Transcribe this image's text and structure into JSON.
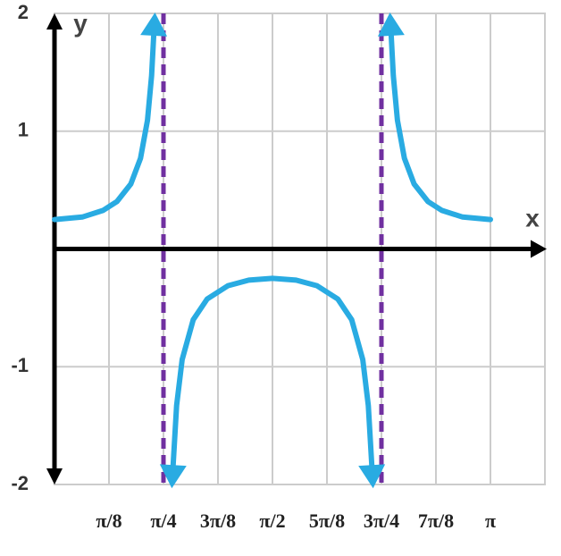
{
  "chart_data": {
    "type": "line",
    "xlabel": "x",
    "ylabel": "y",
    "x": [
      0,
      0.2,
      0.35,
      0.45,
      0.55,
      0.62,
      0.67,
      0.7,
      0.72,
      0.7854,
      0.85,
      0.88,
      0.92,
      1.0,
      1.1,
      1.25,
      1.4,
      1.5708,
      1.7416,
      1.8916,
      2.0416,
      2.1416,
      2.2216,
      2.2616,
      2.2916,
      2.3562,
      2.4216,
      2.4416,
      2.4716,
      2.5216,
      2.5916,
      2.6916,
      2.7916,
      2.9416,
      3.1416
    ],
    "values": [
      0.25,
      0.271,
      0.327,
      0.402,
      0.551,
      0.77,
      1.093,
      1.471,
      1.917,
      null,
      -1.941,
      -1.33,
      -0.94,
      -0.601,
      -0.425,
      -0.312,
      -0.265,
      -0.25,
      -0.265,
      -0.312,
      -0.425,
      -0.601,
      -0.94,
      -1.33,
      -1.941,
      null,
      1.917,
      1.471,
      1.093,
      0.77,
      0.551,
      0.402,
      0.327,
      0.271,
      0.25
    ],
    "color": "#29abe2",
    "asymptotes": [
      0.7854,
      2.3562
    ],
    "asymptote_color": "#7030a0",
    "xlim": [
      0,
      3.5343
    ],
    "ylim": [
      -2,
      2
    ],
    "xticks": [
      {
        "value": 0.3927,
        "label": "π/8"
      },
      {
        "value": 0.7854,
        "label": "π/4"
      },
      {
        "value": 1.1781,
        "label": "3π/8"
      },
      {
        "value": 1.5708,
        "label": "π/2"
      },
      {
        "value": 1.9635,
        "label": "5π/8"
      },
      {
        "value": 2.3562,
        "label": "3π/4"
      },
      {
        "value": 2.7489,
        "label": "7π/8"
      },
      {
        "value": 3.1416,
        "label": "π"
      }
    ],
    "xgrid": [
      0.3927,
      0.7854,
      1.1781,
      1.5708,
      1.9635,
      2.3562,
      2.7489,
      3.1416,
      3.5343
    ],
    "yticks": [
      -2,
      -1,
      1,
      2
    ],
    "grid": true
  }
}
